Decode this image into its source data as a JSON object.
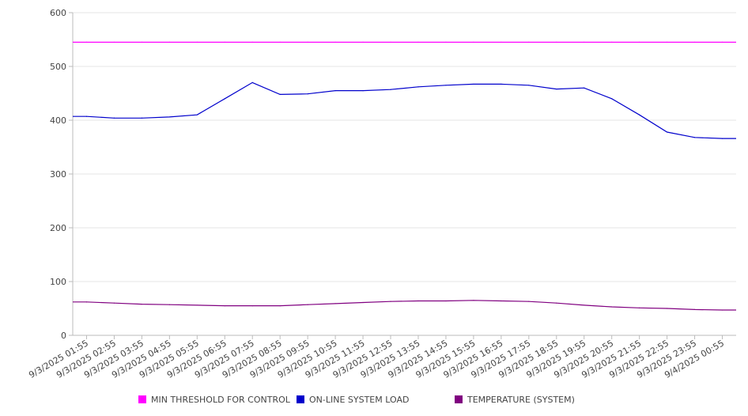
{
  "chart_data": {
    "type": "line",
    "title": "",
    "xlabel": "",
    "ylabel": "",
    "ylim": [
      0,
      600
    ],
    "y_ticks": [
      0,
      100,
      200,
      300,
      400,
      500,
      600
    ],
    "grid": true,
    "legend_position": "bottom",
    "categories": [
      "9/3/2025 01:55",
      "9/3/2025 02:55",
      "9/3/2025 03:55",
      "9/3/2025 04:55",
      "9/3/2025 05:55",
      "9/3/2025 06:55",
      "9/3/2025 07:55",
      "9/3/2025 08:55",
      "9/3/2025 09:55",
      "9/3/2025 10:55",
      "9/3/2025 11:55",
      "9/3/2025 12:55",
      "9/3/2025 13:55",
      "9/3/2025 14:55",
      "9/3/2025 15:55",
      "9/3/2025 16:55",
      "9/3/2025 17:55",
      "9/3/2025 18:55",
      "9/3/2025 19:55",
      "9/3/2025 20:55",
      "9/3/2025 21:55",
      "9/3/2025 22:55",
      "9/3/2025 23:55",
      "9/4/2025 00:55"
    ],
    "series": [
      {
        "name": "MIN THRESHOLD FOR CONTROL",
        "color": "#ff00ff",
        "values": [
          545,
          545,
          545,
          545,
          545,
          545,
          545,
          545,
          545,
          545,
          545,
          545,
          545,
          545,
          545,
          545,
          545,
          545,
          545,
          545,
          545,
          545,
          545,
          545
        ]
      },
      {
        "name": "ON-LINE SYSTEM LOAD",
        "color": "#0000cc",
        "values": [
          407,
          404,
          404,
          406,
          410,
          440,
          470,
          448,
          449,
          455,
          455,
          457,
          462,
          465,
          467,
          467,
          465,
          458,
          460,
          440,
          410,
          378,
          368,
          366
        ]
      },
      {
        "name": "TEMPERATURE (SYSTEM)",
        "color": "#800080",
        "values": [
          62,
          60,
          58,
          57,
          56,
          55,
          55,
          55,
          57,
          59,
          61,
          63,
          64,
          64,
          65,
          64,
          63,
          60,
          56,
          53,
          51,
          50,
          48,
          47
        ]
      }
    ]
  }
}
